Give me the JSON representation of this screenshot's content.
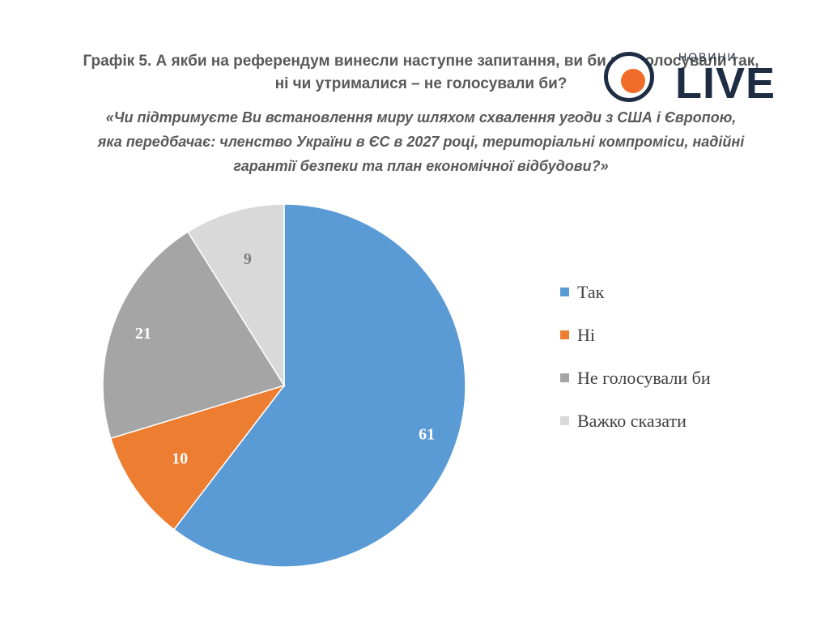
{
  "title": {
    "line1": "Графік 5. А якби на референдум винесли наступне запитання, ви би проголосували так,",
    "line2": "ні чи утрималися – не голосували би?"
  },
  "question": {
    "line1": "«Чи підтримуєте Ви встановлення миру шляхом схвалення угоди з США і Європою,",
    "line2": "яка передбачає: членство України в ЄС в 2027 році, територіальні компроміси, надійні",
    "line3": "гарантії безпеки та план економічної відбудови?»"
  },
  "logo": {
    "small": "НОВИНИ",
    "big": "LIVE",
    "icon": "live-logo-icon"
  },
  "chart_data": {
    "type": "pie",
    "categories": [
      "Так",
      "Ні",
      "Не голосували би",
      "Важко сказати"
    ],
    "values": [
      61,
      10,
      21,
      9
    ],
    "colors": [
      "#5b9bd5",
      "#ed7d31",
      "#a5a5a5",
      "#d9d9d9"
    ],
    "label_colors": [
      "#ffffff",
      "#ffffff",
      "#ffffff",
      "#7f7f7f"
    ],
    "start": "12 o'clock",
    "direction": "clockwise",
    "legend_position": "right"
  }
}
